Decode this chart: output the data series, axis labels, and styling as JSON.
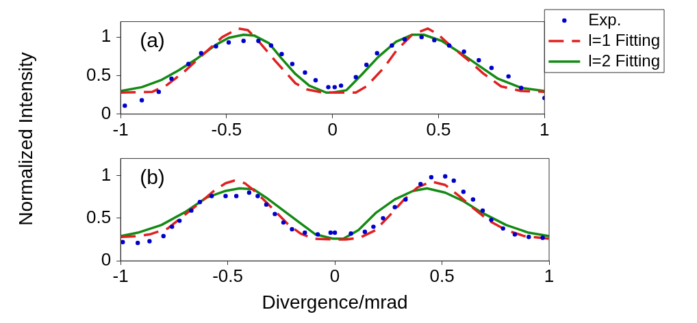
{
  "chart_data": [
    {
      "type": "line",
      "ylabel": "Normalized Intensity",
      "annotations": [
        "(a)"
      ],
      "xlim": [
        -1,
        1
      ],
      "xticks": [
        -1,
        -0.5,
        0,
        0.5,
        1
      ],
      "ylim": [
        0,
        1.2
      ],
      "yticks": [
        0,
        0.5,
        1
      ],
      "grid": false,
      "legend": "top right",
      "series": [
        {
          "name": "Exp.",
          "type": "scatter",
          "marker": "circle",
          "color": "#0000cc",
          "x": [
            -0.98,
            -0.9,
            -0.82,
            -0.76,
            -0.68,
            -0.62,
            -0.55,
            -0.49,
            -0.42,
            -0.35,
            -0.29,
            -0.24,
            -0.19,
            -0.13,
            -0.08,
            -0.02,
            0.01,
            0.04,
            0.11,
            0.16,
            0.21,
            0.28,
            0.34,
            0.42,
            0.48,
            0.55,
            0.62,
            0.69,
            0.75,
            0.83,
            0.89,
            1.0
          ],
          "values": [
            0.11,
            0.18,
            0.29,
            0.46,
            0.65,
            0.79,
            0.88,
            0.93,
            0.95,
            0.95,
            0.89,
            0.78,
            0.65,
            0.54,
            0.44,
            0.35,
            0.35,
            0.37,
            0.48,
            0.64,
            0.79,
            0.89,
            0.97,
            1.0,
            0.96,
            0.89,
            0.81,
            0.7,
            0.6,
            0.49,
            0.34,
            0.21
          ]
        },
        {
          "name": "l=1 Fitting",
          "marker": "none",
          "line_style": "dashed",
          "color": "#e02020",
          "x": [
            -1,
            -0.85,
            -0.78,
            -0.7,
            -0.6,
            -0.52,
            -0.445,
            -0.4,
            -0.35,
            -0.27,
            -0.175,
            -0.12,
            -0.045,
            0.11,
            0.16,
            0.245,
            0.3,
            0.375,
            0.45,
            0.5,
            0.555,
            0.645,
            0.71,
            0.795,
            0.89,
            1.0
          ],
          "values": [
            0.28,
            0.29,
            0.38,
            0.55,
            0.8,
            1.0,
            1.11,
            1.09,
            0.95,
            0.69,
            0.4,
            0.32,
            0.28,
            0.28,
            0.36,
            0.61,
            0.82,
            1.03,
            1.11,
            1.03,
            0.89,
            0.69,
            0.53,
            0.36,
            0.3,
            0.29
          ]
        },
        {
          "name": "l=2 Fitting",
          "marker": "none",
          "line_style": "solid",
          "color": "#138a13",
          "x": [
            -1,
            -0.9,
            -0.81,
            -0.725,
            -0.64,
            -0.55,
            -0.49,
            -0.42,
            -0.37,
            -0.3,
            -0.24,
            -0.175,
            -0.11,
            -0.03,
            0,
            0.065,
            0.14,
            0.215,
            0.3,
            0.375,
            0.43,
            0.515,
            0.6,
            0.69,
            0.78,
            0.89,
            1.0
          ],
          "values": [
            0.3,
            0.35,
            0.44,
            0.57,
            0.72,
            0.9,
            0.99,
            1.03,
            1.02,
            0.92,
            0.72,
            0.52,
            0.37,
            0.28,
            0.28,
            0.31,
            0.52,
            0.74,
            0.94,
            1.03,
            1.03,
            0.95,
            0.8,
            0.63,
            0.46,
            0.34,
            0.3
          ]
        }
      ]
    },
    {
      "type": "line",
      "xlabel": "Divergence/mrad",
      "annotations": [
        "(b)"
      ],
      "xlim": [
        -1,
        1
      ],
      "xticks": [
        -1,
        -0.5,
        0,
        0.5,
        1
      ],
      "ylim": [
        0,
        1.2
      ],
      "yticks": [
        0,
        0.5,
        1
      ],
      "grid": false,
      "legend": false,
      "series": [
        {
          "type": "scatter",
          "marker": "circle",
          "color": "#0000cc",
          "x": [
            -0.99,
            -0.92,
            -0.865,
            -0.8,
            -0.76,
            -0.725,
            -0.67,
            -0.63,
            -0.575,
            -0.51,
            -0.46,
            -0.4,
            -0.36,
            -0.32,
            -0.28,
            -0.24,
            -0.2,
            -0.14,
            -0.08,
            -0.02,
            0,
            0.075,
            0.14,
            0.18,
            0.225,
            0.28,
            0.33,
            0.4,
            0.45,
            0.515,
            0.555,
            0.6,
            0.645,
            0.69,
            0.73,
            0.785,
            0.84,
            0.905,
            0.97
          ],
          "values": [
            0.22,
            0.21,
            0.23,
            0.29,
            0.4,
            0.47,
            0.59,
            0.69,
            0.76,
            0.76,
            0.76,
            0.8,
            0.76,
            0.66,
            0.55,
            0.45,
            0.37,
            0.33,
            0.31,
            0.33,
            0.33,
            0.32,
            0.34,
            0.4,
            0.5,
            0.63,
            0.72,
            0.9,
            0.98,
            0.99,
            0.94,
            0.81,
            0.72,
            0.59,
            0.48,
            0.38,
            0.31,
            0.28,
            0.27
          ]
        },
        {
          "marker": "none",
          "line_style": "dashed",
          "color": "#e02020",
          "x": [
            -1,
            -0.92,
            -0.865,
            -0.78,
            -0.715,
            -0.64,
            -0.56,
            -0.51,
            -0.47,
            -0.42,
            -0.38,
            -0.325,
            -0.27,
            -0.215,
            -0.16,
            -0.1,
            0,
            0.05,
            0.115,
            0.19,
            0.255,
            0.32,
            0.385,
            0.45,
            0.515,
            0.58,
            0.645,
            0.72,
            0.8,
            0.885,
            1.0
          ],
          "values": [
            0.28,
            0.29,
            0.31,
            0.38,
            0.51,
            0.66,
            0.83,
            0.91,
            0.94,
            0.91,
            0.83,
            0.7,
            0.56,
            0.42,
            0.32,
            0.26,
            0.25,
            0.25,
            0.27,
            0.36,
            0.53,
            0.71,
            0.86,
            0.93,
            0.89,
            0.76,
            0.62,
            0.47,
            0.36,
            0.29,
            0.26
          ]
        },
        {
          "marker": "none",
          "line_style": "solid",
          "color": "#138a13",
          "x": [
            -1,
            -0.92,
            -0.81,
            -0.7,
            -0.6,
            -0.51,
            -0.445,
            -0.38,
            -0.32,
            -0.24,
            -0.16,
            -0.09,
            -0.01,
            0.04,
            0.11,
            0.19,
            0.28,
            0.365,
            0.43,
            0.515,
            0.6,
            0.69,
            0.8,
            0.905,
            1.0
          ],
          "values": [
            0.29,
            0.33,
            0.42,
            0.57,
            0.74,
            0.82,
            0.85,
            0.84,
            0.74,
            0.59,
            0.44,
            0.31,
            0.26,
            0.26,
            0.36,
            0.56,
            0.72,
            0.82,
            0.85,
            0.8,
            0.7,
            0.56,
            0.42,
            0.33,
            0.29
          ]
        }
      ]
    }
  ]
}
